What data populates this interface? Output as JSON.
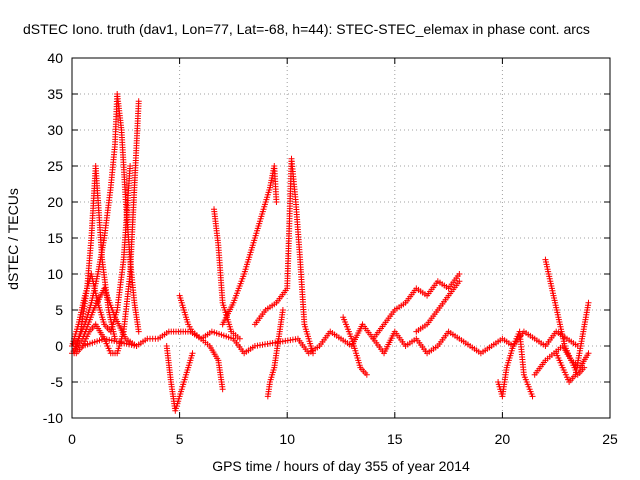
{
  "chart_data": {
    "type": "scatter",
    "title": "dSTEC Iono. truth (dav1, Lon=77, Lat=-68, h=44): STEC-STEC_elemax in phase cont. arcs",
    "xlabel": "GPS time / hours of day 355 of year 2014",
    "ylabel": "dSTEC  / TECUs",
    "xlim": [
      0,
      25
    ],
    "ylim": [
      -10,
      40
    ],
    "x_ticks": [
      "0",
      "5",
      "10",
      "15",
      "20",
      "25"
    ],
    "y_ticks": [
      "-10",
      "-5",
      "0",
      "5",
      "10",
      "15",
      "20",
      "25",
      "30",
      "35",
      "40"
    ],
    "grid": true,
    "marker": "+",
    "color": "#ff0000",
    "series": [
      {
        "x": [
          0.0,
          0.3,
          0.6,
          0.9,
          1.2,
          1.5,
          1.8,
          2.0,
          2.1,
          2.3,
          2.5,
          2.7,
          2.9,
          3.1
        ],
        "y": [
          0,
          1,
          3,
          6,
          10,
          15,
          22,
          28,
          35,
          30,
          20,
          12,
          6,
          2
        ]
      },
      {
        "x": [
          0.1,
          0.4,
          0.7,
          0.9,
          1.1,
          1.4,
          1.7,
          2.0
        ],
        "y": [
          -1,
          2,
          8,
          15,
          25,
          12,
          5,
          1
        ]
      },
      {
        "x": [
          0.2,
          0.5,
          0.8,
          1.1,
          1.5,
          1.8,
          2.1,
          2.4,
          2.7,
          2.9,
          3.1
        ],
        "y": [
          -1,
          0,
          2,
          3,
          1,
          -1,
          -1,
          2,
          10,
          22,
          34
        ]
      },
      {
        "x": [
          0.0,
          0.3,
          0.6,
          0.9,
          1.2,
          1.5,
          1.8,
          2.1,
          2.4,
          2.7
        ],
        "y": [
          0,
          3,
          7,
          10,
          6,
          3,
          2,
          5,
          12,
          25
        ]
      },
      {
        "x": [
          0.0,
          0.5,
          1.0,
          1.5,
          2.0,
          2.5,
          3.0
        ],
        "y": [
          -1,
          1,
          5,
          8,
          4,
          1,
          0
        ]
      },
      {
        "x": [
          4.4,
          4.6,
          4.8,
          5.0,
          5.2,
          5.4,
          5.6
        ],
        "y": [
          0,
          -5,
          -9,
          -7,
          -5,
          -3,
          -1
        ]
      },
      {
        "x": [
          5.0,
          5.2,
          5.4,
          5.6,
          6.0,
          6.4,
          6.8,
          7.0
        ],
        "y": [
          7,
          5,
          3,
          2,
          1,
          0,
          -2,
          -6
        ]
      },
      {
        "x": [
          6.6,
          6.8,
          7.0,
          7.4,
          7.8
        ],
        "y": [
          19,
          14,
          6,
          2,
          1
        ]
      },
      {
        "x": [
          7.0,
          7.5,
          8.0,
          8.5,
          8.8,
          9.0,
          9.2,
          9.4,
          9.5
        ],
        "y": [
          3,
          6,
          10,
          15,
          18,
          20,
          22,
          25,
          20
        ]
      },
      {
        "x": [
          9.1,
          9.2,
          9.4,
          9.6,
          9.8
        ],
        "y": [
          -7,
          -5,
          -3,
          1,
          5
        ]
      },
      {
        "x": [
          8.5,
          9.0,
          9.5,
          10.0,
          10.2,
          10.4,
          10.6,
          10.8,
          11.2
        ],
        "y": [
          3,
          5,
          6,
          8,
          26,
          20,
          12,
          3,
          -1
        ]
      },
      {
        "x": [
          12.6,
          13.0,
          13.4,
          13.7
        ],
        "y": [
          4,
          1,
          -3,
          -4
        ]
      },
      {
        "x": [
          14.0,
          14.5,
          15.0,
          15.5,
          16.0,
          16.5,
          17.0,
          17.5,
          18.0
        ],
        "y": [
          1,
          3,
          5,
          6,
          8,
          7,
          9,
          8,
          10
        ]
      },
      {
        "x": [
          16.0,
          16.5,
          17.0,
          17.5,
          18.0
        ],
        "y": [
          2,
          3,
          5,
          7,
          9
        ]
      },
      {
        "x": [
          19.8,
          20.0,
          20.2,
          20.5,
          20.8,
          21.0,
          21.4
        ],
        "y": [
          -5,
          -7,
          -3,
          0,
          2,
          -4,
          -7
        ]
      },
      {
        "x": [
          21.5,
          22.0,
          22.4,
          22.8,
          23.2,
          23.6,
          24.0
        ],
        "y": [
          -4,
          -2,
          -1,
          0,
          -2,
          -3,
          -1
        ]
      },
      {
        "x": [
          22.0,
          22.3,
          22.6,
          22.9,
          23.2,
          23.5,
          23.8
        ],
        "y": [
          12,
          8,
          4,
          0,
          -2,
          -4,
          -3
        ]
      },
      {
        "x": [
          22.5,
          22.8,
          23.1,
          23.4,
          23.7,
          24.0
        ],
        "y": [
          -1,
          -3,
          -5,
          -4,
          1,
          6
        ]
      },
      {
        "x": [
          0.5,
          1.5,
          3.0,
          3.5,
          4.0,
          4.5,
          5.5,
          6.0,
          6.5,
          7.5,
          8.0,
          8.5,
          10.5,
          11.0,
          11.5,
          12.0,
          12.5,
          13.0,
          13.5,
          14.0,
          14.5,
          15.0,
          15.5,
          16.0,
          16.5,
          17.0,
          17.5,
          18.0,
          18.5,
          19.0,
          19.5,
          20.0,
          20.5,
          21.0,
          21.5,
          22.0,
          22.5,
          23.0,
          23.5
        ],
        "y": [
          0,
          1,
          0,
          1,
          1,
          2,
          2,
          1,
          2,
          1,
          -1,
          0,
          1,
          -1,
          0,
          2,
          1,
          0,
          3,
          1,
          -1,
          2,
          0,
          1,
          -1,
          0,
          2,
          1,
          0,
          -1,
          0,
          1,
          0,
          2,
          1,
          0,
          2,
          1,
          0
        ]
      }
    ]
  }
}
